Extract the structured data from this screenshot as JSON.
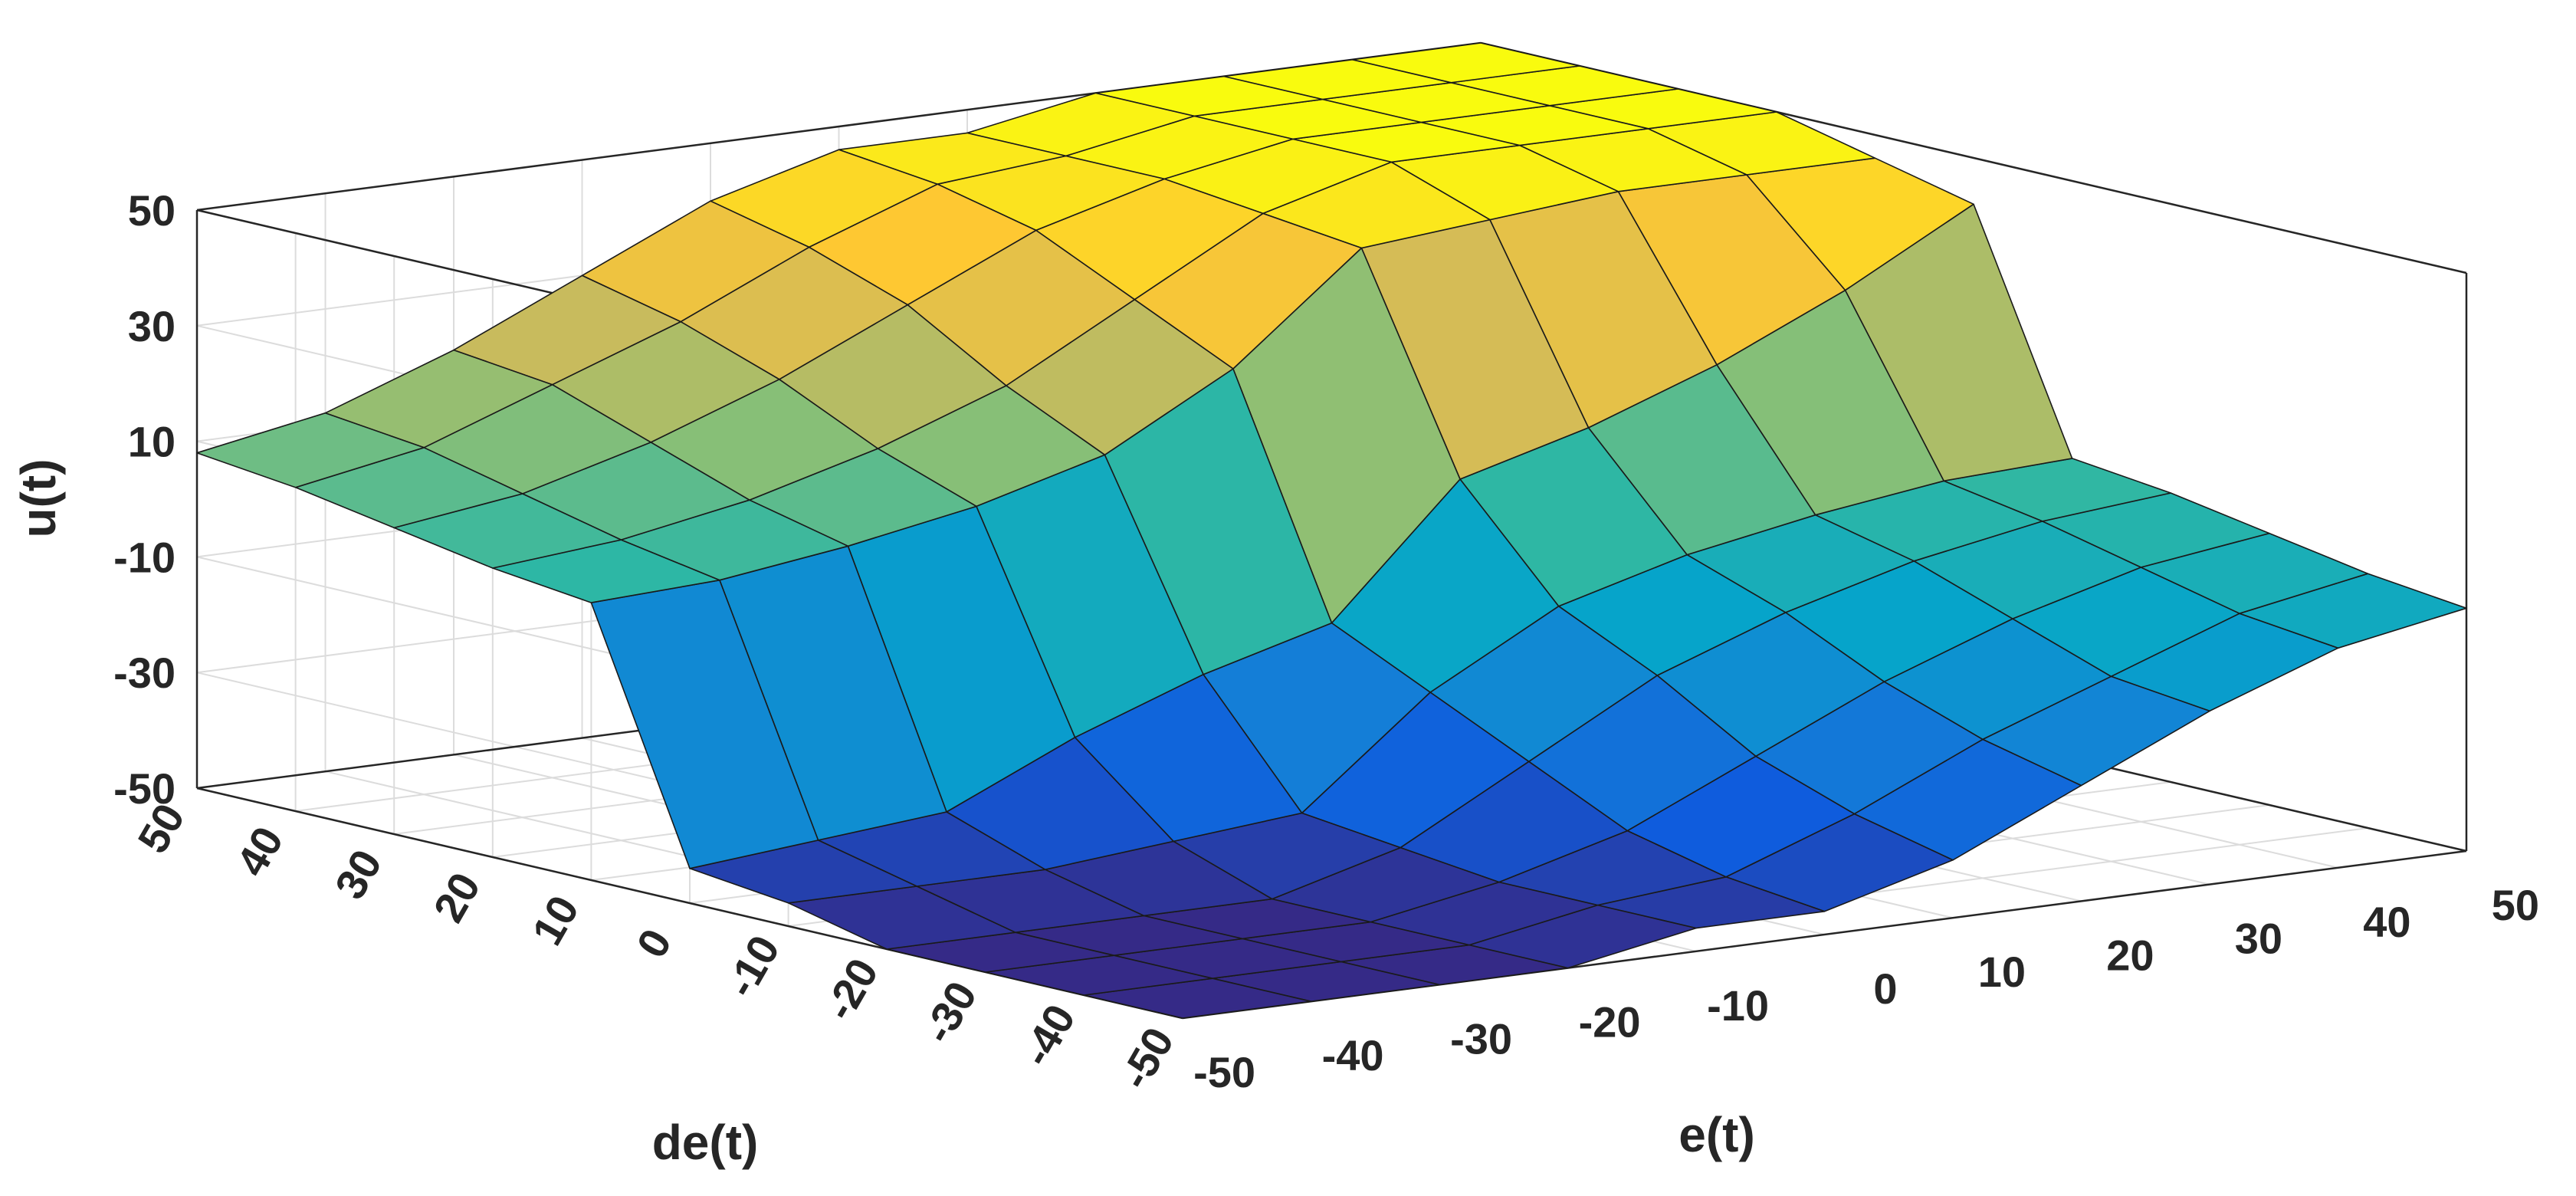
{
  "chart_data": {
    "type": "surface",
    "xlabel": "e(t)",
    "ylabel": "de(t)",
    "zlabel": "u(t)",
    "xlim": [
      -50,
      50
    ],
    "ylim": [
      -50,
      50
    ],
    "zlim": [
      -50,
      50
    ],
    "x_ticks": [
      -50,
      -40,
      -30,
      -20,
      -10,
      0,
      10,
      20,
      30,
      40,
      50
    ],
    "y_ticks": [
      -50,
      -40,
      -30,
      -20,
      -10,
      0,
      10,
      20,
      30,
      40,
      50
    ],
    "z_ticks": [
      -50,
      -30,
      -10,
      10,
      30,
      50
    ],
    "x_tick_labels": [
      "-50",
      "-40",
      "-30",
      "-20",
      "-10",
      "0",
      "10",
      "20",
      "30",
      "40",
      "50"
    ],
    "y_tick_labels": [
      "-50",
      "-40",
      "-30",
      "-20",
      "-10",
      "0",
      "10",
      "20",
      "30",
      "40",
      "50"
    ],
    "z_tick_labels": [
      "-50",
      "-30",
      "-10",
      "10",
      "30",
      "50"
    ],
    "grid": true,
    "colormap": "parula",
    "colormap_stops": [
      "#352a87",
      "#0f5cdd",
      "#1481d6",
      "#06a4ca",
      "#2eb7a4",
      "#87bf77",
      "#d1bb59",
      "#fec832",
      "#f9fb0e"
    ],
    "grid_x": [
      -50,
      -40,
      -30,
      -20,
      -10,
      0,
      10,
      20,
      30,
      40,
      50
    ],
    "grid_y": [
      -50,
      -40,
      -30,
      -20,
      -10,
      0,
      10,
      20,
      30,
      40,
      50
    ],
    "z_rows_y_ascending": [
      [
        -50,
        -50,
        -50,
        -50,
        -46,
        -46,
        -40,
        -30,
        -20,
        -12,
        -8
      ],
      [
        -50,
        -50,
        -50,
        -50,
        -46,
        -44,
        -36,
        -26,
        -18,
        -10,
        -6
      ],
      [
        -50,
        -50,
        -50,
        -50,
        -46,
        -40,
        -30,
        -20,
        -12,
        -6,
        -3
      ],
      [
        -50,
        -50,
        -50,
        -50,
        -44,
        -32,
        -20,
        -12,
        -6,
        -2,
        0
      ],
      [
        -46,
        -46,
        -46,
        -44,
        -42,
        -24,
        -12,
        -6,
        -2,
        1,
        2
      ],
      [
        -44,
        -42,
        -40,
        -30,
        -22,
        -16,
        6,
        12,
        20,
        30,
        42
      ],
      [
        -2,
        -1,
        2,
        6,
        12,
        24,
        42,
        44,
        46,
        46,
        46
      ],
      [
        0,
        2,
        6,
        12,
        20,
        32,
        44,
        50,
        50,
        50,
        50
      ],
      [
        3,
        6,
        12,
        20,
        30,
        40,
        46,
        50,
        50,
        50,
        50
      ],
      [
        6,
        10,
        18,
        26,
        36,
        44,
        46,
        50,
        50,
        50,
        50
      ],
      [
        8,
        12,
        20,
        30,
        40,
        46,
        46,
        50,
        50,
        50,
        50
      ]
    ]
  }
}
